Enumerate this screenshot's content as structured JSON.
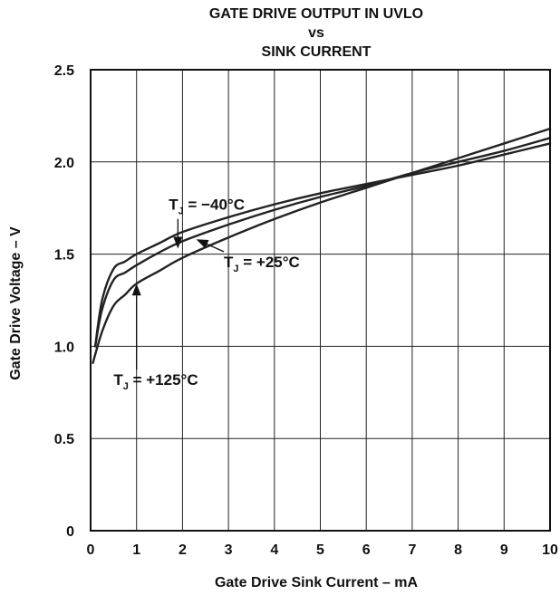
{
  "chart_data": {
    "type": "line",
    "title_lines": [
      "GATE DRIVE OUTPUT IN UVLO",
      "vs",
      "SINK CURRENT"
    ],
    "xlabel": "Gate Drive Sink Current – mA",
    "ylabel": "Gate Drive Voltage – V",
    "xlim": [
      0,
      10
    ],
    "ylim": [
      0,
      2.5
    ],
    "x_ticks": [
      "0",
      "1",
      "2",
      "3",
      "4",
      "5",
      "6",
      "7",
      "8",
      "9",
      "10"
    ],
    "y_ticks": [
      "0",
      "0.5",
      "1.0",
      "1.5",
      "2.0",
      "2.5"
    ],
    "grid": true,
    "series": [
      {
        "name": "TJ = −40°C",
        "label_main": "T",
        "label_sub": "J",
        "label_rest": " = −40°C",
        "x": [
          0.1,
          0.25,
          0.5,
          0.75,
          1.0,
          1.5,
          2.0,
          3.0,
          4.0,
          5.0,
          6.0,
          7.0,
          8.0,
          9.0,
          10.0
        ],
        "y": [
          1.0,
          1.25,
          1.42,
          1.46,
          1.5,
          1.56,
          1.62,
          1.7,
          1.77,
          1.83,
          1.88,
          1.93,
          1.98,
          2.04,
          2.1
        ]
      },
      {
        "name": "TJ = +25°C",
        "label_main": "T",
        "label_sub": "J",
        "label_rest": " = +25°C",
        "x": [
          0.1,
          0.25,
          0.5,
          0.75,
          1.0,
          1.5,
          2.0,
          3.0,
          4.0,
          5.0,
          6.0,
          7.0,
          8.0,
          9.0,
          10.0
        ],
        "y": [
          1.0,
          1.2,
          1.36,
          1.4,
          1.44,
          1.51,
          1.57,
          1.66,
          1.74,
          1.81,
          1.87,
          1.94,
          2.0,
          2.06,
          2.13
        ]
      },
      {
        "name": "TJ = +125°C",
        "label_main": "T",
        "label_sub": "J",
        "label_rest": " = +125°C",
        "x": [
          0.05,
          0.25,
          0.5,
          0.75,
          1.0,
          1.5,
          2.0,
          3.0,
          4.0,
          5.0,
          6.0,
          7.0,
          8.0,
          9.0,
          10.0
        ],
        "y": [
          0.91,
          1.08,
          1.22,
          1.28,
          1.34,
          1.41,
          1.48,
          1.59,
          1.69,
          1.78,
          1.86,
          1.94,
          2.02,
          2.1,
          2.18
        ]
      }
    ],
    "annotations": [
      {
        "series": 0,
        "text_at": [
          1.7,
          1.74
        ],
        "arrow_to": [
          1.9,
          1.53
        ]
      },
      {
        "series": 1,
        "text_at": [
          2.9,
          1.43
        ],
        "arrow_to": [
          2.3,
          1.58
        ]
      },
      {
        "series": 2,
        "text_at": [
          0.5,
          0.79
        ],
        "arrow_to": [
          1.0,
          1.34
        ]
      }
    ]
  }
}
